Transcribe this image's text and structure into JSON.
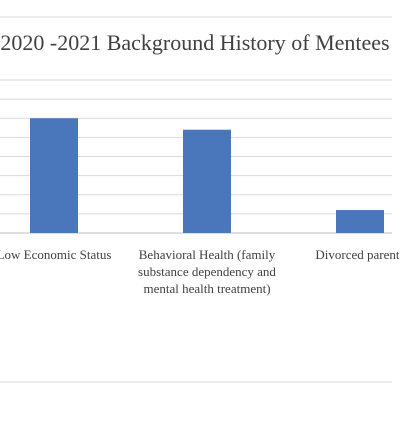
{
  "chart_data": {
    "type": "bar",
    "title": "2020 -2021 Background History of Mentees",
    "categories": [
      "Low Economic Status",
      "Behavioral Health (family substance dependency and mental health treatment)",
      "Divorced parents"
    ],
    "values": [
      6,
      5.4,
      1.2
    ],
    "color": "#4a76bb",
    "ylim": [
      0,
      8
    ],
    "yticks": [
      0,
      1,
      2,
      3,
      4,
      5,
      6,
      7,
      8
    ],
    "grid": true
  }
}
